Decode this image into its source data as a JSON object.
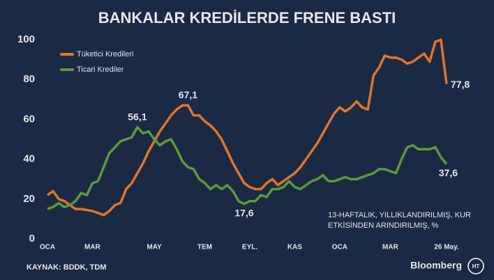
{
  "chart_data": {
    "type": "line",
    "title": "BANKALAR KREDİLERDE FRENE BASTI",
    "note": [
      "13-HAFTALIK, YILLIKLANDIRILMIŞ, KUR",
      "ETKİSİNDEN ARINDIRILMIŞ, %"
    ],
    "source": "KAYNAK: BDDK, TDM",
    "brand": "Bloomberg",
    "logo": "HT",
    "x": [
      0,
      1,
      2,
      3,
      4,
      5,
      6,
      7,
      8,
      9,
      10,
      11,
      12,
      13,
      14,
      15,
      16,
      17,
      18,
      19,
      20,
      21,
      22,
      23,
      24,
      25,
      26,
      27,
      28,
      29,
      30,
      31,
      32,
      33,
      34,
      35,
      36,
      37,
      38,
      39,
      40,
      41,
      42,
      43,
      44,
      45,
      46,
      47,
      48,
      49,
      50,
      51,
      52,
      53,
      54,
      55,
      56,
      57,
      58,
      59,
      60,
      61,
      62,
      63,
      64,
      65,
      66,
      67,
      68,
      69,
      70,
      71
    ],
    "xlim": [
      0,
      71
    ],
    "xticks": [
      {
        "value": 0,
        "label": "OCA"
      },
      {
        "value": 8,
        "label": "MAR"
      },
      {
        "value": 19,
        "label": "MAY"
      },
      {
        "value": 28,
        "label": "TEM"
      },
      {
        "value": 36,
        "label": "EYL."
      },
      {
        "value": 44,
        "label": "KAS"
      },
      {
        "value": 52,
        "label": "OCA"
      },
      {
        "value": 61,
        "label": "MAR"
      },
      {
        "value": 71,
        "label": "26 May."
      }
    ],
    "ylim": [
      0,
      100
    ],
    "yticks": [
      0,
      20,
      40,
      60,
      80,
      100
    ],
    "legend": "top-left",
    "series": [
      {
        "name": "Tüketici Kredileri",
        "color": "#e2742b",
        "values": [
          22,
          24,
          20,
          19,
          17,
          15,
          15,
          14.5,
          14,
          13,
          12,
          14,
          17,
          18,
          25,
          28,
          33,
          38,
          44,
          49,
          54,
          58,
          62,
          65,
          67,
          67.1,
          62,
          62,
          59,
          57,
          54,
          50,
          44,
          38,
          33,
          28,
          26,
          25,
          25,
          28,
          30,
          27,
          29,
          31,
          33,
          36,
          40,
          44,
          48,
          53,
          58,
          63,
          66,
          64,
          66,
          69,
          66,
          65,
          82,
          86,
          92,
          91,
          91,
          90,
          88,
          89,
          91,
          93,
          89,
          99,
          100,
          77.8
        ],
        "value_labels": [
          null,
          null,
          null,
          null,
          null,
          null,
          null,
          null,
          null,
          null,
          null,
          null,
          null,
          null,
          null,
          null,
          null,
          null,
          null,
          null,
          null,
          null,
          null,
          null,
          null,
          "67,1",
          null,
          null,
          null,
          null,
          null,
          null,
          null,
          null,
          null,
          null,
          null,
          null,
          null,
          null,
          null,
          null,
          null,
          null,
          null,
          null,
          null,
          null,
          null,
          null,
          null,
          null,
          null,
          null,
          null,
          null,
          null,
          null,
          null,
          null,
          null,
          null,
          null,
          null,
          null,
          null,
          null,
          null,
          null,
          null,
          null,
          "77,8"
        ]
      },
      {
        "name": "Ticari Krediler",
        "color": "#5b9a3b",
        "values": [
          15,
          16,
          18,
          16,
          17,
          19,
          23,
          22,
          28,
          29,
          36,
          43,
          46,
          49,
          50,
          51,
          56.1,
          53,
          54,
          50,
          47,
          49,
          50,
          45,
          39,
          36,
          35,
          30,
          28,
          25,
          27,
          25,
          27,
          24,
          19,
          17.6,
          19,
          19,
          22,
          21,
          25,
          25,
          26,
          29,
          26,
          25,
          27,
          29,
          30,
          32,
          29,
          29,
          30,
          31,
          30,
          30,
          31,
          32,
          33,
          35,
          35,
          34,
          33,
          40,
          46,
          47,
          45,
          45,
          45,
          46,
          41,
          37.6
        ],
        "value_labels": [
          null,
          null,
          null,
          null,
          null,
          null,
          null,
          null,
          null,
          null,
          null,
          null,
          null,
          null,
          null,
          null,
          "56,1",
          null,
          null,
          null,
          null,
          null,
          null,
          null,
          null,
          null,
          null,
          null,
          null,
          null,
          null,
          null,
          null,
          null,
          null,
          "17,6",
          null,
          null,
          null,
          null,
          null,
          null,
          null,
          null,
          null,
          null,
          null,
          null,
          null,
          null,
          null,
          null,
          null,
          null,
          null,
          null,
          null,
          null,
          null,
          null,
          null,
          null,
          null,
          null,
          null,
          null,
          null,
          null,
          null,
          null,
          null,
          "37,6"
        ]
      }
    ]
  }
}
